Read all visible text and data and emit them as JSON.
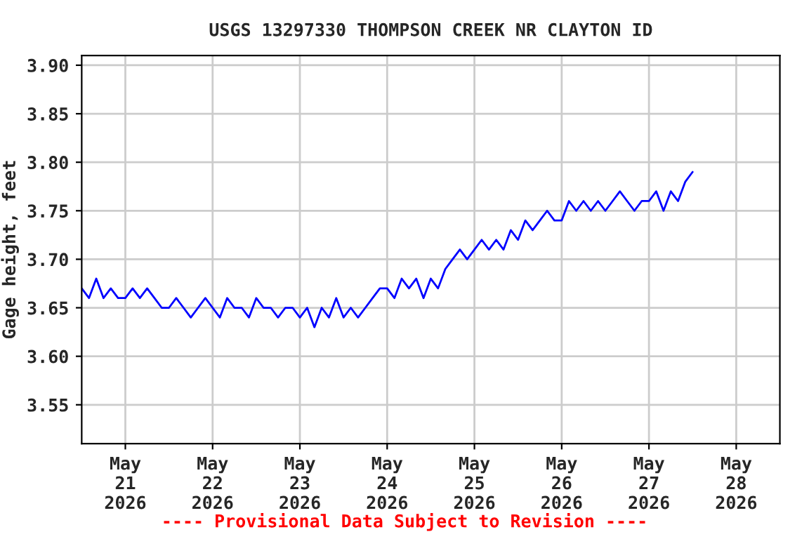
{
  "chart_data": {
    "type": "line",
    "title": "USGS 13297330 THOMPSON CREEK NR CLAYTON ID",
    "ylabel": "Gage height, feet",
    "x": [
      "2026-05-20T12:00",
      "2026-05-20T14:00",
      "2026-05-20T16:00",
      "2026-05-20T18:00",
      "2026-05-20T20:00",
      "2026-05-20T22:00",
      "2026-05-21T00:00",
      "2026-05-21T02:00",
      "2026-05-21T04:00",
      "2026-05-21T06:00",
      "2026-05-21T08:00",
      "2026-05-21T10:00",
      "2026-05-21T12:00",
      "2026-05-21T14:00",
      "2026-05-21T16:00",
      "2026-05-21T18:00",
      "2026-05-21T20:00",
      "2026-05-21T22:00",
      "2026-05-22T00:00",
      "2026-05-22T02:00",
      "2026-05-22T04:00",
      "2026-05-22T06:00",
      "2026-05-22T08:00",
      "2026-05-22T10:00",
      "2026-05-22T12:00",
      "2026-05-22T14:00",
      "2026-05-22T16:00",
      "2026-05-22T18:00",
      "2026-05-22T20:00",
      "2026-05-22T22:00",
      "2026-05-23T00:00",
      "2026-05-23T02:00",
      "2026-05-23T04:00",
      "2026-05-23T06:00",
      "2026-05-23T08:00",
      "2026-05-23T10:00",
      "2026-05-23T12:00",
      "2026-05-23T14:00",
      "2026-05-23T16:00",
      "2026-05-23T18:00",
      "2026-05-23T20:00",
      "2026-05-23T22:00",
      "2026-05-24T00:00",
      "2026-05-24T02:00",
      "2026-05-24T04:00",
      "2026-05-24T06:00",
      "2026-05-24T08:00",
      "2026-05-24T10:00",
      "2026-05-24T12:00",
      "2026-05-24T14:00",
      "2026-05-24T16:00",
      "2026-05-24T18:00",
      "2026-05-24T20:00",
      "2026-05-24T22:00",
      "2026-05-25T00:00",
      "2026-05-25T02:00",
      "2026-05-25T04:00",
      "2026-05-25T06:00",
      "2026-05-25T08:00",
      "2026-05-25T10:00",
      "2026-05-25T12:00",
      "2026-05-25T14:00",
      "2026-05-25T16:00",
      "2026-05-25T18:00",
      "2026-05-25T20:00",
      "2026-05-25T22:00",
      "2026-05-26T00:00",
      "2026-05-26T02:00",
      "2026-05-26T04:00",
      "2026-05-26T06:00",
      "2026-05-26T08:00",
      "2026-05-26T10:00",
      "2026-05-26T12:00",
      "2026-05-26T14:00",
      "2026-05-26T16:00",
      "2026-05-26T18:00",
      "2026-05-26T20:00",
      "2026-05-26T22:00",
      "2026-05-27T00:00",
      "2026-05-27T02:00",
      "2026-05-27T04:00",
      "2026-05-27T06:00",
      "2026-05-27T08:00",
      "2026-05-27T10:00",
      "2026-05-27T12:00"
    ],
    "series": [
      {
        "color": "#0000ff",
        "values": [
          3.67,
          3.66,
          3.68,
          3.66,
          3.67,
          3.66,
          3.66,
          3.67,
          3.66,
          3.67,
          3.66,
          3.65,
          3.65,
          3.66,
          3.65,
          3.64,
          3.65,
          3.66,
          3.65,
          3.64,
          3.66,
          3.65,
          3.65,
          3.64,
          3.66,
          3.65,
          3.65,
          3.64,
          3.65,
          3.65,
          3.64,
          3.65,
          3.63,
          3.65,
          3.64,
          3.66,
          3.64,
          3.65,
          3.64,
          3.65,
          3.66,
          3.67,
          3.67,
          3.66,
          3.68,
          3.67,
          3.68,
          3.66,
          3.68,
          3.67,
          3.69,
          3.7,
          3.71,
          3.7,
          3.71,
          3.72,
          3.71,
          3.72,
          3.71,
          3.73,
          3.72,
          3.74,
          3.73,
          3.74,
          3.75,
          3.74,
          3.74,
          3.76,
          3.75,
          3.76,
          3.75,
          3.76,
          3.75,
          3.76,
          3.77,
          3.76,
          3.75,
          3.76,
          3.76,
          3.77,
          3.75,
          3.77,
          3.76,
          3.78,
          3.79
        ]
      }
    ],
    "xlim": [
      "2026-05-20T12:00",
      "2026-05-28T12:00"
    ],
    "xticks": [
      {
        "value": "2026-05-21",
        "label": "May\n21\n2026"
      },
      {
        "value": "2026-05-22",
        "label": "May\n22\n2026"
      },
      {
        "value": "2026-05-23",
        "label": "May\n23\n2026"
      },
      {
        "value": "2026-05-24",
        "label": "May\n24\n2026"
      },
      {
        "value": "2026-05-25",
        "label": "May\n25\n2026"
      },
      {
        "value": "2026-05-26",
        "label": "May\n26\n2026"
      },
      {
        "value": "2026-05-27",
        "label": "May\n27\n2026"
      },
      {
        "value": "2026-05-28",
        "label": "May\n28\n2026"
      }
    ],
    "ylim": [
      3.51,
      3.91
    ],
    "yticks": [
      {
        "value": 3.55,
        "label": "3.55"
      },
      {
        "value": 3.6,
        "label": "3.60"
      },
      {
        "value": 3.65,
        "label": "3.65"
      },
      {
        "value": 3.7,
        "label": "3.70"
      },
      {
        "value": 3.75,
        "label": "3.75"
      },
      {
        "value": 3.8,
        "label": "3.80"
      },
      {
        "value": 3.85,
        "label": "3.85"
      },
      {
        "value": 3.9,
        "label": "3.90"
      }
    ],
    "grid": true,
    "line_style": "solid",
    "annotations": [
      "---- Provisional Data Subject to Revision ----"
    ]
  }
}
